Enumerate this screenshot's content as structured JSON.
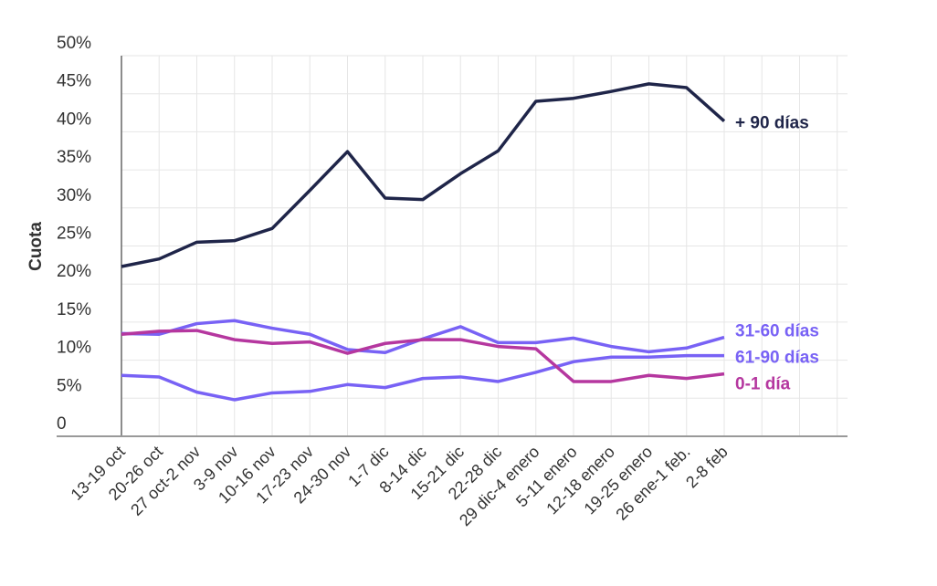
{
  "chart_data": {
    "type": "line",
    "title": "",
    "xlabel": "",
    "ylabel": "Cuota",
    "ylim": [
      0,
      50
    ],
    "yticks": [
      "0",
      "5%",
      "10%",
      "15%",
      "20%",
      "25%",
      "30%",
      "35%",
      "40%",
      "45%",
      "50%"
    ],
    "grid": true,
    "legend": "inline labels at line ends",
    "categories": [
      "13-19 oct",
      "20-26 oct",
      "27 oct-2 nov",
      "3-9 nov",
      "10-16 nov",
      "17-23 nov",
      "24-30 nov",
      "1-7 dic",
      "8-14 dic",
      "15-21 dic",
      "22-28 dic",
      "29 dic-4 enero",
      "5-11 enero",
      "12-18 enero",
      "19-25 enero",
      "26 ene-1 feb.",
      "2-8 feb"
    ],
    "series": [
      {
        "name": "+ 90 días",
        "color": "#1f2549",
        "values": [
          22.3,
          23.3,
          25.5,
          25.7,
          27.3,
          32.3,
          37.4,
          31.3,
          31.1,
          34.5,
          37.5,
          44.0,
          44.4,
          45.3,
          46.3,
          45.8,
          41.4
        ]
      },
      {
        "name": "31-60 días",
        "color": "#7862f5",
        "values": [
          13.5,
          13.4,
          14.8,
          15.2,
          14.2,
          13.4,
          11.4,
          11.0,
          12.8,
          14.4,
          12.3,
          12.3,
          12.9,
          11.8,
          11.1,
          11.6,
          13.0
        ]
      },
      {
        "name": "61-90 días",
        "color": "#7862f5",
        "values": [
          8.0,
          7.8,
          5.8,
          4.8,
          5.7,
          5.9,
          6.8,
          6.4,
          7.6,
          7.8,
          7.2,
          8.4,
          9.8,
          10.4,
          10.4,
          10.6,
          10.6
        ]
      },
      {
        "name": "0-1 día",
        "color": "#b5379f",
        "values": [
          13.4,
          13.8,
          13.9,
          12.7,
          12.2,
          12.4,
          10.9,
          12.2,
          12.7,
          12.7,
          11.8,
          11.5,
          7.2,
          7.2,
          8.0,
          7.6,
          8.2
        ]
      }
    ]
  }
}
